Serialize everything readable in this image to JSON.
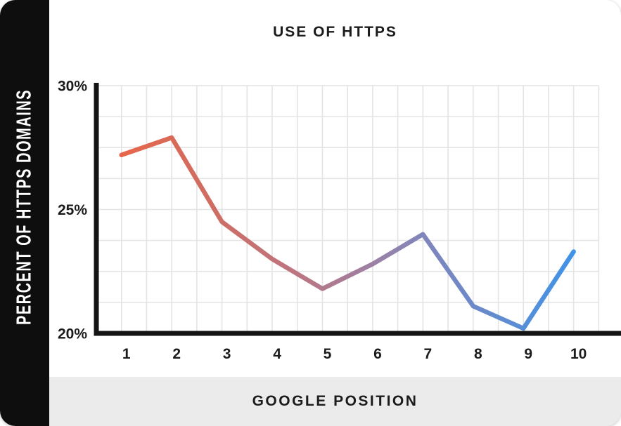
{
  "sidebar": {
    "label": "PERCENT OF HTTPS DOMAINS"
  },
  "header": {
    "title": "USE OF HTTPS"
  },
  "footer": {
    "label": "GOOGLE POSITION"
  },
  "colors": {
    "sidebar_bg": "#0E0E0E",
    "footer_bg": "#EBEBEB",
    "plot_bg": "#FFFFFF",
    "grid": "#E4E4E4",
    "axis": "#141414",
    "text": "#1B1B1B",
    "label_text_light": "#FFFFFF",
    "line_start": "#E7664A",
    "line_end": "#3F93E8"
  },
  "chart_data": {
    "type": "line",
    "title": "USE OF HTTPS",
    "xlabel": "GOOGLE POSITION",
    "ylabel": "PERCENT OF HTTPS DOMAINS",
    "x": [
      1,
      2,
      3,
      4,
      5,
      6,
      7,
      8,
      9,
      10
    ],
    "x_tick_labels": [
      "1",
      "2",
      "3",
      "4",
      "5",
      "6",
      "7",
      "8",
      "9",
      "10"
    ],
    "values": [
      27.2,
      27.9,
      24.5,
      23.0,
      21.8,
      22.8,
      24.0,
      21.1,
      20.2,
      23.3
    ],
    "ylim": [
      20,
      30
    ],
    "y_ticks": [
      {
        "value": 30,
        "label": "30%"
      },
      {
        "value": 25,
        "label": "25%"
      },
      {
        "value": 20,
        "label": "20%"
      }
    ],
    "grid": true,
    "y_minor_step": 1.25,
    "x_minor_step": 0.5,
    "legend": "none",
    "line_gradient": [
      {
        "offset": 0,
        "color": "#E7664A"
      },
      {
        "offset": 0.18,
        "color": "#D16C60"
      },
      {
        "offset": 0.4,
        "color": "#BB7683"
      },
      {
        "offset": 0.56,
        "color": "#9B81A5"
      },
      {
        "offset": 0.68,
        "color": "#7E86BE"
      },
      {
        "offset": 0.84,
        "color": "#618CD0"
      },
      {
        "offset": 1,
        "color": "#3F93E8"
      }
    ]
  }
}
